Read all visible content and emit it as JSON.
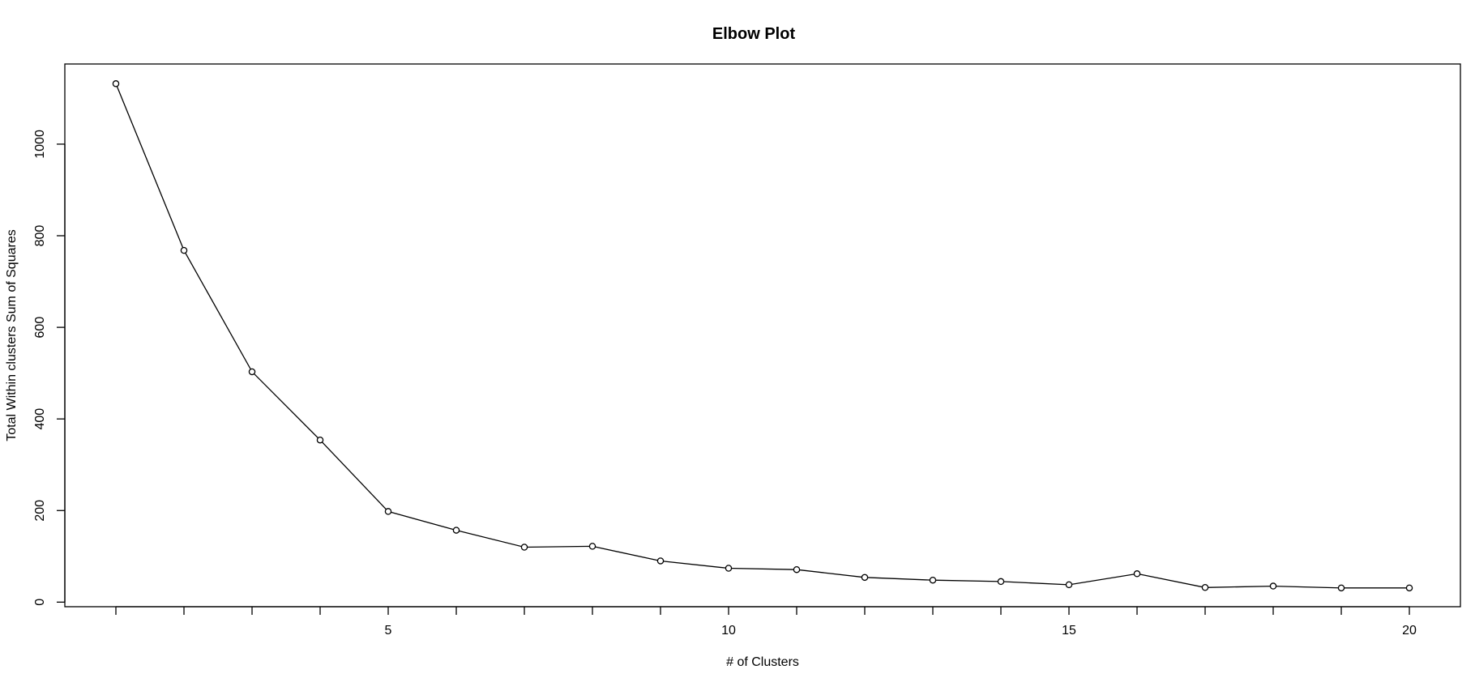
{
  "chart_data": {
    "type": "line",
    "title": "Elbow Plot",
    "xlabel": "# of Clusters",
    "ylabel": "Total Within clusters Sum of Squares",
    "x": [
      1,
      2,
      3,
      4,
      5,
      6,
      7,
      8,
      9,
      10,
      11,
      12,
      13,
      14,
      15,
      16,
      17,
      18,
      19,
      20
    ],
    "series": [
      {
        "values": [
          1132,
          768,
          503,
          354,
          198,
          157,
          120,
          122,
          90,
          74,
          71,
          54,
          48,
          45,
          38,
          62,
          32,
          35,
          31,
          31
        ]
      }
    ],
    "xlim": [
      0.25,
      20.75
    ],
    "ylim": [
      -10,
      1175
    ],
    "xticks": [
      5,
      10,
      15,
      20
    ],
    "yticks": [
      0,
      200,
      400,
      600,
      800,
      1000
    ],
    "xtick_labels": [
      "5",
      "10",
      "15",
      "20"
    ],
    "ytick_labels": [
      "0",
      "200",
      "400",
      "600",
      "800",
      "1000"
    ],
    "marker": "open-circle",
    "line_color": "#000000",
    "grid": false,
    "legend": "none"
  }
}
